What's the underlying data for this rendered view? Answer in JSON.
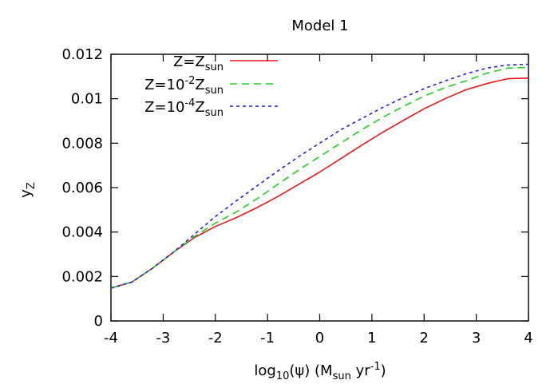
{
  "chart_data": {
    "type": "line",
    "title": "Model 1",
    "xlabel": {
      "pre": "log",
      "pre_sub": "10",
      "mid": "(ψ) (M",
      "mid_sub": "sun",
      "post": " yr",
      "post_sup": "-1",
      "close": ")"
    },
    "ylabel": {
      "main": "y",
      "sub": "Z"
    },
    "xlim": [
      -4,
      4
    ],
    "ylim": [
      0,
      0.012
    ],
    "xticks": [
      -4,
      -3,
      -2,
      -1,
      0,
      1,
      2,
      3,
      4
    ],
    "xtick_labels": [
      "-4",
      "-3",
      "-2",
      "-1",
      "0",
      "1",
      "2",
      "3",
      "4"
    ],
    "yticks": [
      0,
      0.002,
      0.004,
      0.006,
      0.008,
      0.01,
      0.012
    ],
    "ytick_labels": [
      "0",
      "0.002",
      "0.004",
      "0.006",
      "0.008",
      "0.01",
      "0.012"
    ],
    "legend_position": "top-left",
    "grid": false,
    "series": [
      {
        "legend": {
          "pre": "Z=Z",
          "pre_sup": "",
          "mid": "",
          "sub": "sun"
        },
        "color": "#e8181a",
        "dash": "solid",
        "x": [
          -4,
          -3.6,
          -3.2,
          -2.8,
          -2.4,
          -2.0,
          -1.6,
          -1.2,
          -0.8,
          -0.4,
          0.0,
          0.4,
          0.8,
          1.2,
          1.6,
          2.0,
          2.4,
          2.8,
          3.2,
          3.6,
          4.0
        ],
        "y": [
          0.00148,
          0.00175,
          0.00238,
          0.0031,
          0.00375,
          0.00425,
          0.00465,
          0.0051,
          0.0056,
          0.00615,
          0.0067,
          0.0073,
          0.0079,
          0.00848,
          0.00902,
          0.00955,
          0.01,
          0.0104,
          0.01068,
          0.0109,
          0.01093
        ]
      },
      {
        "legend": {
          "pre": "Z=10",
          "pre_sup": "-2",
          "mid": "Z",
          "sub": "sun"
        },
        "color": "#1fcf1f",
        "dash": "long",
        "x": [
          -4,
          -3.6,
          -3.2,
          -2.8,
          -2.4,
          -2.0,
          -1.6,
          -1.2,
          -0.8,
          -0.4,
          0.0,
          0.4,
          0.8,
          1.2,
          1.6,
          2.0,
          2.4,
          2.8,
          3.2,
          3.6,
          4.0
        ],
        "y": [
          0.00148,
          0.00175,
          0.00238,
          0.0031,
          0.0038,
          0.0044,
          0.0049,
          0.0055,
          0.00615,
          0.0068,
          0.0074,
          0.008,
          0.0086,
          0.00915,
          0.00965,
          0.01012,
          0.0105,
          0.0108,
          0.01115,
          0.01138,
          0.01141
        ]
      },
      {
        "legend": {
          "pre": "Z=10",
          "pre_sup": "-4",
          "mid": "Z",
          "sub": "sun"
        },
        "color": "#2020e0",
        "dash": "short",
        "x": [
          -4,
          -3.6,
          -3.2,
          -2.8,
          -2.4,
          -2.0,
          -1.6,
          -1.2,
          -0.8,
          -0.4,
          0.0,
          0.4,
          0.8,
          1.2,
          1.6,
          2.0,
          2.4,
          2.8,
          3.2,
          3.6,
          4.0
        ],
        "y": [
          0.00148,
          0.00175,
          0.00238,
          0.0031,
          0.0039,
          0.0047,
          0.0054,
          0.00608,
          0.00675,
          0.0074,
          0.008,
          0.0086,
          0.0091,
          0.0096,
          0.01005,
          0.01045,
          0.0108,
          0.01112,
          0.01138,
          0.01152,
          0.01155
        ]
      }
    ]
  }
}
